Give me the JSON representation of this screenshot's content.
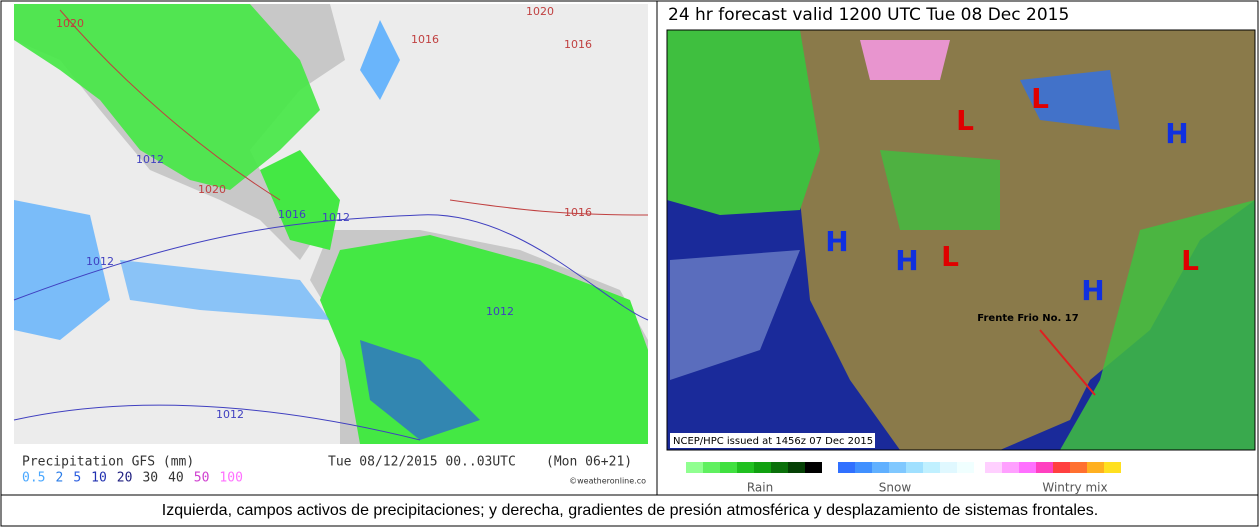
{
  "left_map": {
    "isobar_labels": [
      "1020",
      "1020",
      "1016",
      "1016",
      "1016",
      "1012",
      "1012",
      "1012",
      "1012",
      "1016",
      "1012",
      "1020"
    ],
    "legend": {
      "title": "Precipitation GFS (mm)",
      "date": "Tue 08/12/2015 00..03UTC",
      "run": "(Mon 06+21)",
      "scale": [
        "0.5",
        "2",
        "5",
        "10",
        "20",
        "30",
        "40",
        "50",
        "100"
      ],
      "credit": "©weatheronline.co"
    }
  },
  "right_map": {
    "title": "24 hr forecast valid 1200 UTC Tue 08 Dec 2015",
    "pressure_centers": [
      "L",
      "L",
      "H",
      "H",
      "H",
      "L",
      "H",
      "L"
    ],
    "annotation": "Frente Frio No. 17",
    "issued": "NCEP/HPC issued at 1456z  07 Dec 2015",
    "legend": [
      "Rain",
      "Snow",
      "Wintry mix"
    ]
  },
  "caption": "Izquierda, campos activos de precipitaciones; y derecha, gradientes de presión atmosférica y desplazamiento de sistemas frontales."
}
